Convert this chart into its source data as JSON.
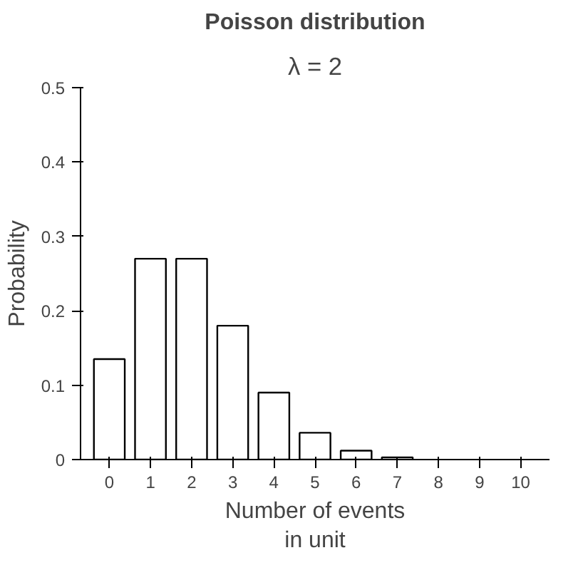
{
  "chart_data": {
    "type": "bar",
    "title": "Poisson distribution",
    "subtitle": "λ = 2",
    "xlabel": "Number of events\nin unit",
    "ylabel": "Probability",
    "categories": [
      "0",
      "1",
      "2",
      "3",
      "4",
      "5",
      "6",
      "7",
      "8",
      "9",
      "10"
    ],
    "values": [
      0.135,
      0.27,
      0.27,
      0.18,
      0.09,
      0.036,
      0.012,
      0.003,
      null,
      null,
      null
    ],
    "color": "#ffffff",
    "ylim": [
      0,
      0.5
    ],
    "yticks": [
      0,
      0.1,
      0.2,
      0.3,
      0.4,
      0.5
    ],
    "grid": false
  }
}
